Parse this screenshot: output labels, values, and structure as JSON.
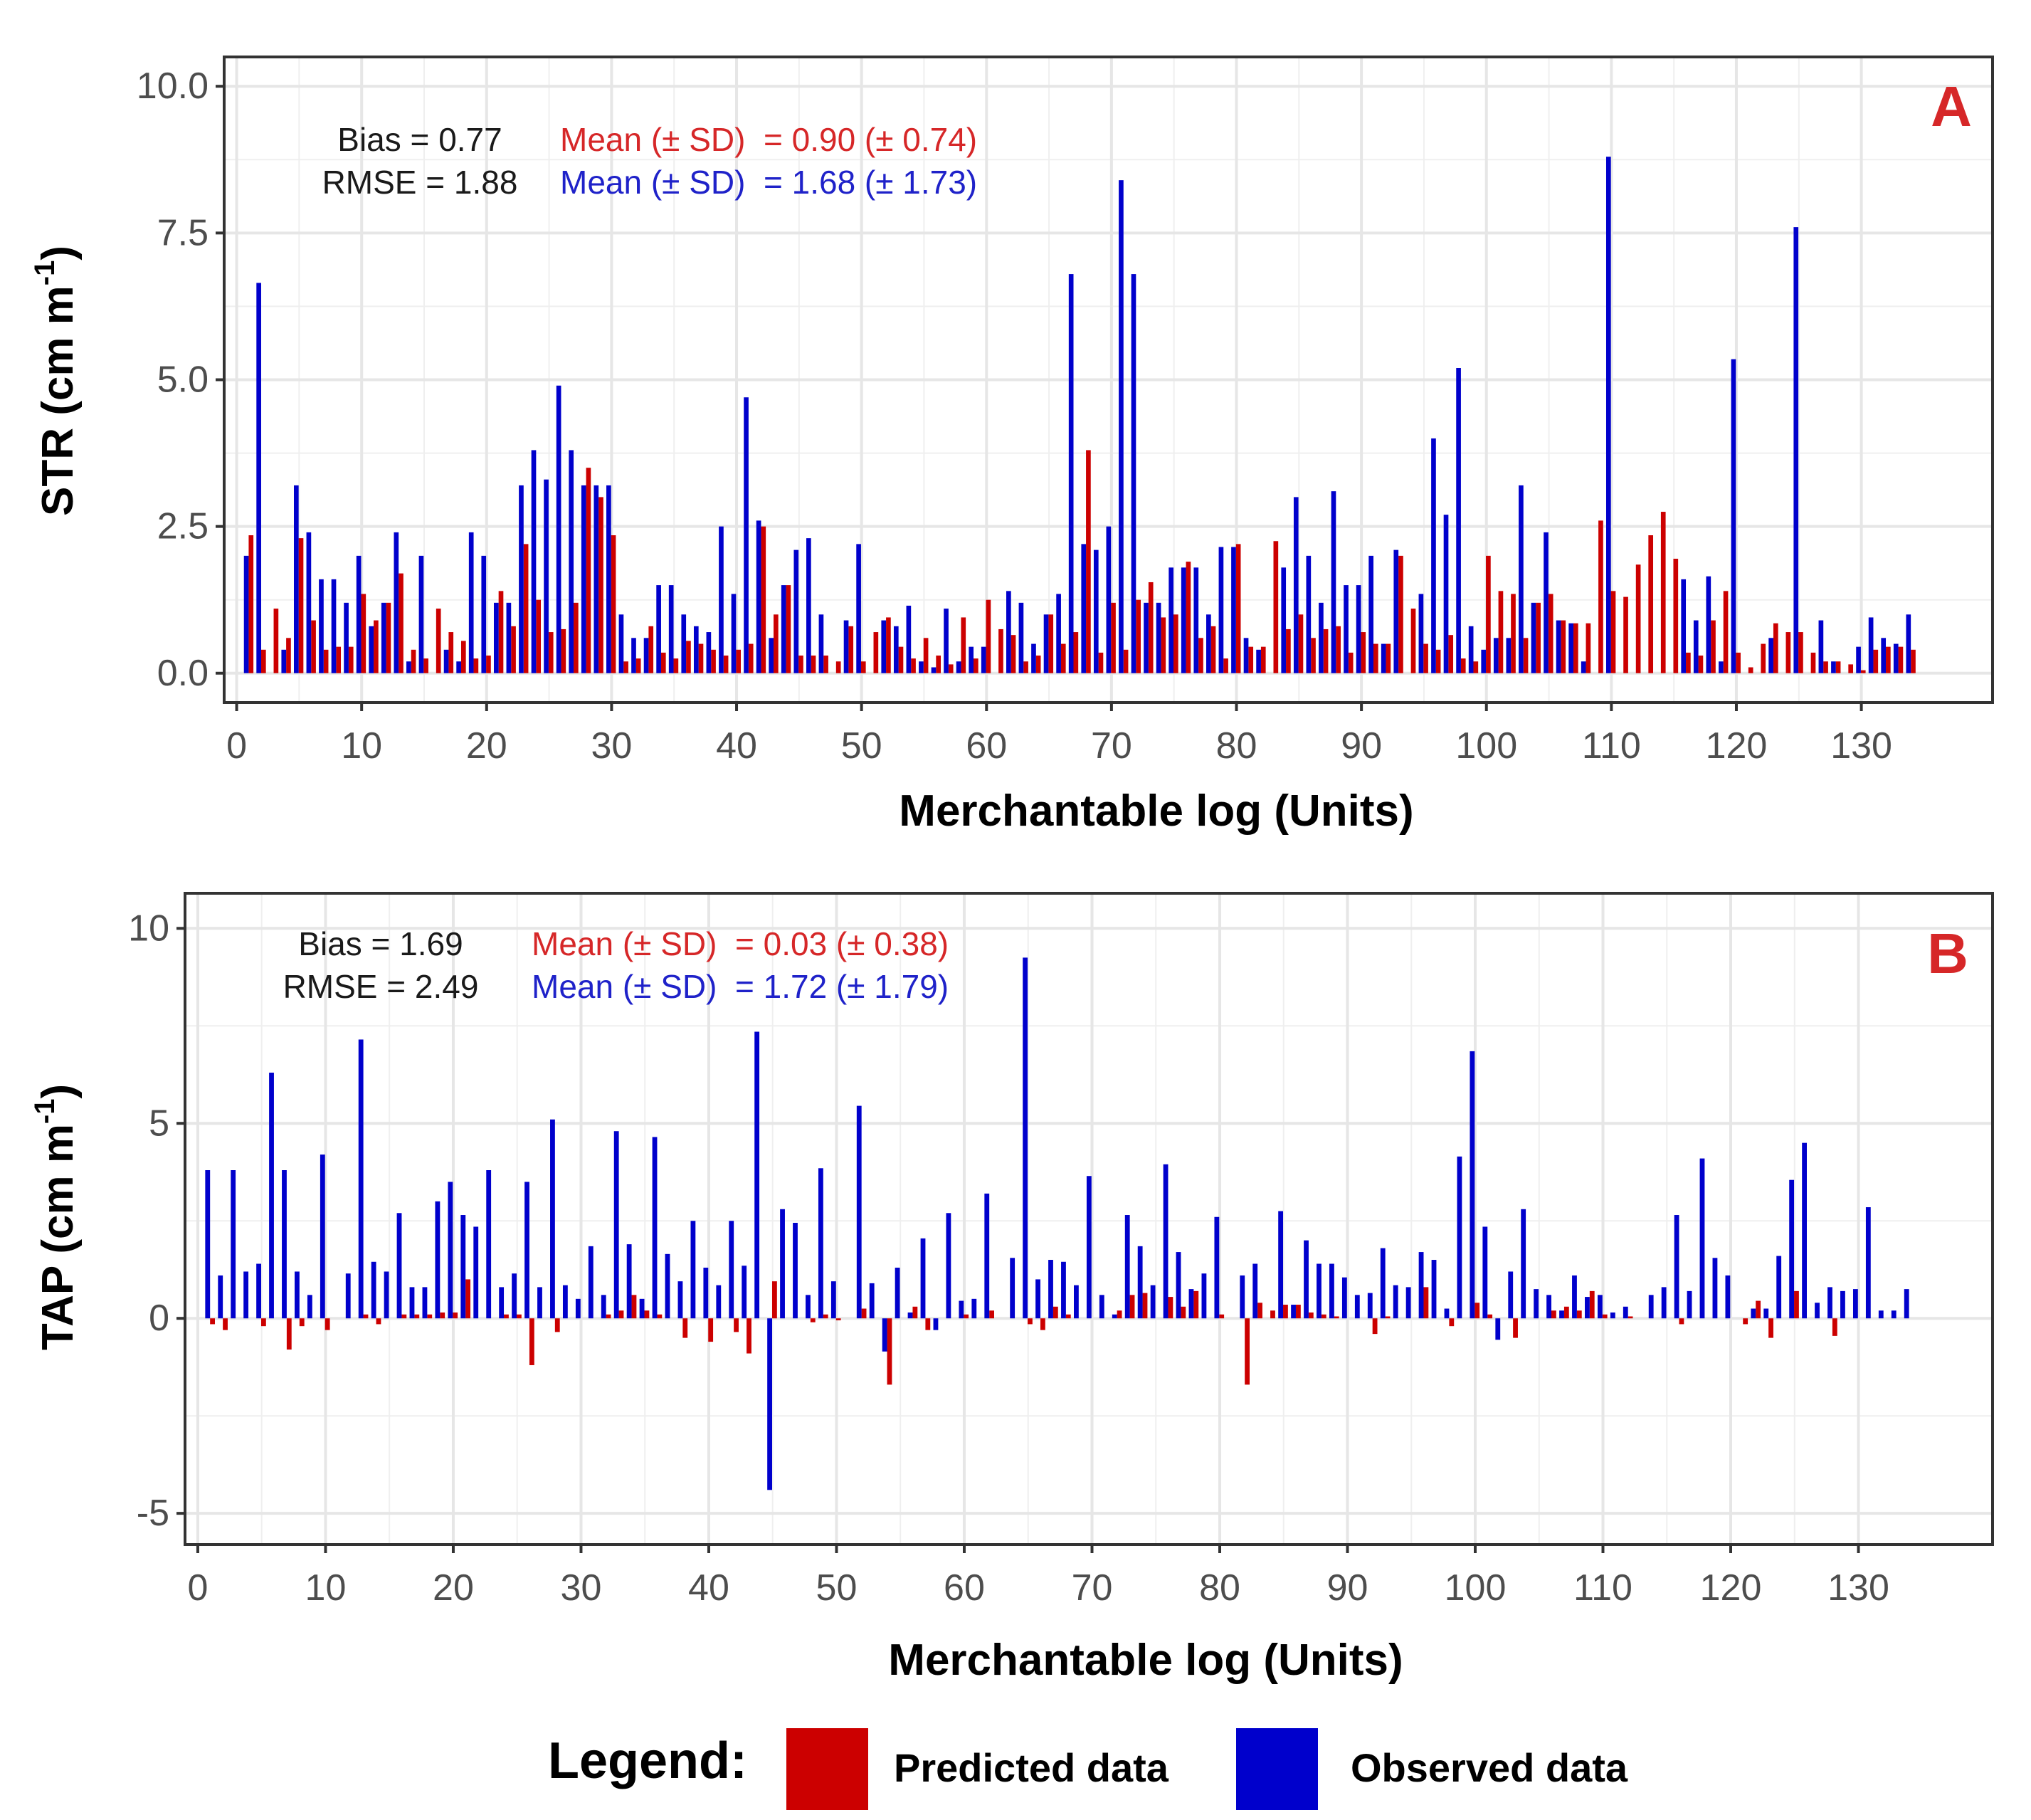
{
  "colors": {
    "predicted": "#cc0000",
    "observed": "#0000cc",
    "panel_label": "#d62728",
    "stats_text": "#1a1a1a",
    "grid": "#e6e6e6",
    "frame": "#333333"
  },
  "legend": {
    "title": "Legend:",
    "items": [
      {
        "label": "Predicted data",
        "color": "#cc0000"
      },
      {
        "label": "Observed data",
        "color": "#0000cc"
      }
    ]
  },
  "chart_data": [
    {
      "type": "bar",
      "panel_label": "A",
      "xlabel": "Merchantable log (Units)",
      "ylabel": "STR (cm m",
      "ylabel_sup": "-1",
      "ylabel_end": ")",
      "xlim": [
        -1,
        140.5
      ],
      "ylim": [
        -0.5,
        10.5
      ],
      "xticks": [
        0,
        10,
        20,
        30,
        40,
        50,
        60,
        70,
        80,
        90,
        100,
        110,
        120,
        130
      ],
      "xtick_labels": [
        "0",
        "10",
        "20",
        "30",
        "40",
        "50",
        "60",
        "70",
        "80",
        "90",
        "100",
        "110",
        "120",
        "130"
      ],
      "yticks": [
        0,
        2.5,
        5,
        7.5,
        10
      ],
      "ytick_labels": [
        "0.0",
        "2.5",
        "5.0",
        "7.5",
        "10.0"
      ],
      "stats": {
        "bias": "Bias = 0.77",
        "rmse": "RMSE = 1.88",
        "pred_mean": "Mean (± SD)  = 0.90 (± 0.74)",
        "obs_mean": "Mean (± SD)  = 1.68 (± 1.73)"
      },
      "x": [
        1,
        2,
        3,
        4,
        5,
        6,
        7,
        8,
        9,
        10,
        11,
        12,
        13,
        14,
        15,
        16,
        17,
        18,
        19,
        20,
        21,
        22,
        23,
        24,
        25,
        26,
        27,
        28,
        29,
        30,
        31,
        32,
        33,
        34,
        35,
        36,
        37,
        38,
        39,
        40,
        41,
        42,
        43,
        44,
        45,
        46,
        47,
        48,
        49,
        50,
        51,
        52,
        53,
        54,
        55,
        56,
        57,
        58,
        59,
        60,
        61,
        62,
        63,
        64,
        65,
        66,
        67,
        68,
        69,
        70,
        71,
        72,
        73,
        74,
        75,
        76,
        77,
        78,
        79,
        80,
        81,
        82,
        83,
        84,
        85,
        86,
        87,
        88,
        89,
        90,
        91,
        92,
        93,
        94,
        95,
        96,
        97,
        98,
        99,
        100,
        101,
        102,
        103,
        104,
        105,
        106,
        107,
        108,
        109,
        110,
        111,
        112,
        113,
        114,
        115,
        116,
        117,
        118,
        119,
        120,
        121,
        122,
        123,
        124,
        125,
        126,
        127,
        128,
        129,
        130,
        131,
        132,
        133,
        134
      ],
      "series": [
        {
          "name": "Predicted data",
          "values": [
            2.35,
            0.4,
            1.1,
            0.6,
            2.3,
            0.9,
            0.4,
            0.45,
            0.45,
            1.35,
            0.9,
            1.2,
            1.7,
            0.4,
            0.25,
            1.1,
            0.7,
            0.55,
            0.25,
            0.3,
            1.4,
            0.8,
            2.2,
            1.25,
            0.7,
            0.75,
            1.2,
            3.5,
            3.0,
            2.35,
            0.2,
            0.25,
            0.8,
            0.35,
            0.25,
            0.55,
            0.5,
            0.4,
            0.3,
            0.4,
            0.5,
            2.5,
            1.0,
            1.5,
            0.3,
            0.3,
            0.3,
            0.2,
            0.8,
            0.2,
            0.7,
            0.95,
            0.45,
            0.25,
            0.6,
            0.3,
            0.15,
            0.95,
            0.25,
            1.25,
            0.75,
            0.65,
            0.2,
            0.3,
            1.0,
            0.5,
            0.7,
            3.8,
            0.35,
            1.2,
            0.4,
            1.25,
            1.55,
            0.95,
            1.0,
            1.9,
            0.6,
            0.8,
            0.25,
            2.2,
            0.45,
            0.45,
            2.25,
            0.75,
            1.0,
            0.6,
            0.75,
            0.8,
            0.35,
            0.7,
            0.5,
            0.5,
            2.0,
            1.1,
            0.5,
            0.4,
            0.65,
            0.25,
            0.2,
            2.0,
            1.4,
            1.35,
            0.6,
            1.2,
            1.35,
            0.9,
            0.85,
            0.85,
            2.6,
            1.4,
            1.3,
            1.85,
            2.35,
            2.75,
            1.95,
            0.35,
            0.3,
            0.9,
            1.4,
            0.35,
            0.1,
            0.5,
            0.85,
            0.7,
            0.7,
            0.35,
            0.2,
            0.2,
            0.15,
            0.05,
            0.4,
            0.45,
            0.45,
            0.4
          ]
        },
        {
          "name": "Observed data",
          "values": [
            2.0,
            6.65,
            0.0,
            0.4,
            3.2,
            2.4,
            1.6,
            1.6,
            1.2,
            2.0,
            0.8,
            1.2,
            2.4,
            0.2,
            2.0,
            0.0,
            0.4,
            0.2,
            2.4,
            2.0,
            1.2,
            1.2,
            3.2,
            3.8,
            3.3,
            4.9,
            3.8,
            3.2,
            3.2,
            3.2,
            1.0,
            0.6,
            0.6,
            1.5,
            1.5,
            1.0,
            0.8,
            0.7,
            2.5,
            1.35,
            4.7,
            2.6,
            0.6,
            1.5,
            2.1,
            2.3,
            1.0,
            0.0,
            0.9,
            2.2,
            0.0,
            0.9,
            0.8,
            1.15,
            0.2,
            0.1,
            1.1,
            0.2,
            0.45,
            0.45,
            0.0,
            1.4,
            1.2,
            0.5,
            1.0,
            1.35,
            6.8,
            2.2,
            2.1,
            2.5,
            8.4,
            6.8,
            1.2,
            1.2,
            1.8,
            1.8,
            1.8,
            1.0,
            2.15,
            2.15,
            0.6,
            0.4,
            0.0,
            1.8,
            3.0,
            2.0,
            1.2,
            3.1,
            1.5,
            1.5,
            2.0,
            0.5,
            2.1,
            0.0,
            1.35,
            4.0,
            2.7,
            5.2,
            0.8,
            0.4,
            0.6,
            0.6,
            3.2,
            1.2,
            2.4,
            0.9,
            0.85,
            0.2,
            0.0,
            8.8,
            0.0,
            0.0,
            0.0,
            0.0,
            0.0,
            1.6,
            0.9,
            1.65,
            0.2,
            5.35,
            0.0,
            0.0,
            0.6,
            0.0,
            7.6,
            0.0,
            0.9,
            0.2,
            0.0,
            0.45,
            0.95,
            0.6,
            0.5,
            1.0
          ]
        }
      ]
    },
    {
      "type": "bar",
      "panel_label": "B",
      "xlabel": "Merchantable log (Units)",
      "ylabel": "TAP (cm m",
      "ylabel_sup": "-1",
      "ylabel_end": ")",
      "xlim": [
        -1,
        140.5
      ],
      "ylim": [
        -5.8,
        10.9
      ],
      "xticks": [
        0,
        10,
        20,
        30,
        40,
        50,
        60,
        70,
        80,
        90,
        100,
        110,
        120,
        130
      ],
      "xtick_labels": [
        "0",
        "10",
        "20",
        "30",
        "40",
        "50",
        "60",
        "70",
        "80",
        "90",
        "100",
        "110",
        "120",
        "130"
      ],
      "yticks": [
        -5,
        0,
        5,
        10
      ],
      "ytick_labels": [
        "-5",
        "0",
        "5",
        "10"
      ],
      "stats": {
        "bias": "Bias = 1.69",
        "rmse": "RMSE = 2.49",
        "pred_mean": "Mean (± SD)  = 0.03 (± 0.38)",
        "obs_mean": "Mean (± SD)  = 1.72 (± 1.79)"
      },
      "x": [
        1,
        2,
        3,
        4,
        5,
        6,
        7,
        8,
        9,
        10,
        11,
        12,
        13,
        14,
        15,
        16,
        17,
        18,
        19,
        20,
        21,
        22,
        23,
        24,
        25,
        26,
        27,
        28,
        29,
        30,
        31,
        32,
        33,
        34,
        35,
        36,
        37,
        38,
        39,
        40,
        41,
        42,
        43,
        44,
        45,
        46,
        47,
        48,
        49,
        50,
        51,
        52,
        53,
        54,
        55,
        56,
        57,
        58,
        59,
        60,
        61,
        62,
        63,
        64,
        65,
        66,
        67,
        68,
        69,
        70,
        71,
        72,
        73,
        74,
        75,
        76,
        77,
        78,
        79,
        80,
        81,
        82,
        83,
        84,
        85,
        86,
        87,
        88,
        89,
        90,
        91,
        92,
        93,
        94,
        95,
        96,
        97,
        98,
        99,
        100,
        101,
        102,
        103,
        104,
        105,
        106,
        107,
        108,
        109,
        110,
        111,
        112,
        113,
        114,
        115,
        116,
        117,
        118,
        119,
        120,
        121,
        122,
        123,
        124,
        125,
        126,
        127,
        128,
        129,
        130,
        131,
        132,
        133,
        134
      ],
      "series": [
        {
          "name": "Predicted data",
          "values": [
            -0.15,
            -0.3,
            0.0,
            0.0,
            -0.2,
            0.0,
            -0.8,
            -0.2,
            0.0,
            -0.3,
            0.0,
            0.0,
            0.1,
            -0.15,
            0.0,
            0.1,
            0.1,
            0.1,
            0.15,
            0.15,
            1.0,
            0.0,
            0.0,
            0.1,
            0.1,
            -1.2,
            0.0,
            -0.35,
            0.0,
            0.0,
            0.0,
            0.1,
            0.2,
            0.6,
            0.2,
            0.1,
            0.0,
            -0.5,
            0.0,
            -0.6,
            0.0,
            -0.35,
            -0.9,
            0.0,
            0.95,
            0.0,
            0.0,
            -0.1,
            0.1,
            -0.05,
            0.0,
            0.25,
            0.0,
            -1.7,
            0.0,
            0.3,
            -0.3,
            0.0,
            0.0,
            0.1,
            0.0,
            0.2,
            0.0,
            0.0,
            -0.15,
            -0.3,
            0.3,
            0.1,
            0.0,
            0.0,
            0.0,
            0.2,
            0.6,
            0.65,
            0.0,
            0.55,
            0.3,
            0.7,
            0.0,
            0.1,
            0.0,
            -1.7,
            0.4,
            0.2,
            0.35,
            0.35,
            0.15,
            0.1,
            0.05,
            0.0,
            0.0,
            -0.4,
            0.05,
            0.0,
            0.0,
            0.8,
            0.0,
            -0.2,
            0.0,
            0.4,
            0.1,
            0.0,
            -0.5,
            0.0,
            0.0,
            0.2,
            0.3,
            0.2,
            0.7,
            0.1,
            0.0,
            0.05,
            0.0,
            0.0,
            0.0,
            -0.15,
            0.0,
            0.0,
            0.0,
            0.0,
            -0.15,
            0.45,
            -0.5,
            0.0,
            0.7,
            0.0,
            0.0,
            -0.45,
            0.0,
            0.0,
            0.0,
            0.0,
            0.0,
            0.0
          ]
        },
        {
          "name": "Observed data",
          "values": [
            3.8,
            1.1,
            3.8,
            1.2,
            1.4,
            6.3,
            3.8,
            1.2,
            0.6,
            4.2,
            0.0,
            1.15,
            7.15,
            1.45,
            1.2,
            2.7,
            0.8,
            0.8,
            3.0,
            3.5,
            2.65,
            2.35,
            3.8,
            0.8,
            1.15,
            3.5,
            0.8,
            5.1,
            0.85,
            0.5,
            1.85,
            0.6,
            4.8,
            1.9,
            0.5,
            4.65,
            1.65,
            0.95,
            2.5,
            1.3,
            0.85,
            2.5,
            1.35,
            7.35,
            -4.4,
            2.8,
            2.45,
            0.6,
            3.85,
            0.95,
            0.0,
            5.45,
            0.9,
            -0.85,
            1.3,
            0.15,
            2.05,
            -0.3,
            2.7,
            0.45,
            0.5,
            3.2,
            0.0,
            1.55,
            9.25,
            1.0,
            1.5,
            1.45,
            0.85,
            3.65,
            0.6,
            0.1,
            2.65,
            1.85,
            0.85,
            3.95,
            1.7,
            0.75,
            1.15,
            2.6,
            0.0,
            1.1,
            1.4,
            0.0,
            2.75,
            0.35,
            2.0,
            1.4,
            1.4,
            1.05,
            0.6,
            0.65,
            1.8,
            0.85,
            0.8,
            1.7,
            1.5,
            0.25,
            4.15,
            6.85,
            2.35,
            -0.55,
            1.2,
            2.8,
            0.75,
            0.6,
            0.2,
            1.1,
            0.55,
            0.6,
            0.15,
            0.3,
            0.0,
            0.6,
            0.8,
            2.65,
            0.7,
            4.1,
            1.55,
            1.1,
            0.0,
            0.25,
            0.25,
            1.6,
            3.55,
            4.5,
            0.4,
            0.8,
            0.7,
            0.75,
            2.85,
            0.2,
            0.2,
            0.75
          ]
        }
      ]
    }
  ]
}
